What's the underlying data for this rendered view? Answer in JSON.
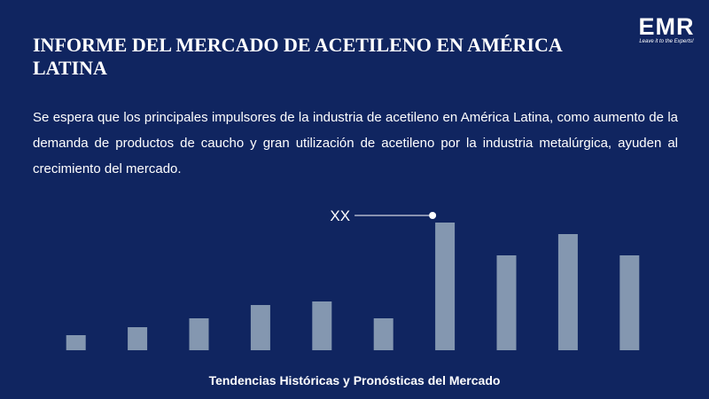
{
  "logo": {
    "text": "EMR",
    "tagline": "Leave it to the Experts!"
  },
  "chart_data": {
    "type": "bar",
    "title": "INFORME DEL MERCADO DE ACETILENO EN AMÉRICA LATINA",
    "subtitle": "Se espera que los principales impulsores de la industria de acetileno en América Latina, como aumento de la demanda de productos de caucho y gran utilización de acetileno por la industria metalúrgica, ayuden al crecimiento del mercado.",
    "xlabel": "Tendencias Históricas y Pronósticas del Mercado",
    "annotation": "XX",
    "categories": [
      null,
      null,
      null,
      null,
      null,
      null,
      null,
      null,
      null,
      null
    ],
    "values": [
      17,
      26,
      36,
      51,
      55,
      36,
      144,
      107,
      131,
      107
    ],
    "color": "#8497b0"
  }
}
